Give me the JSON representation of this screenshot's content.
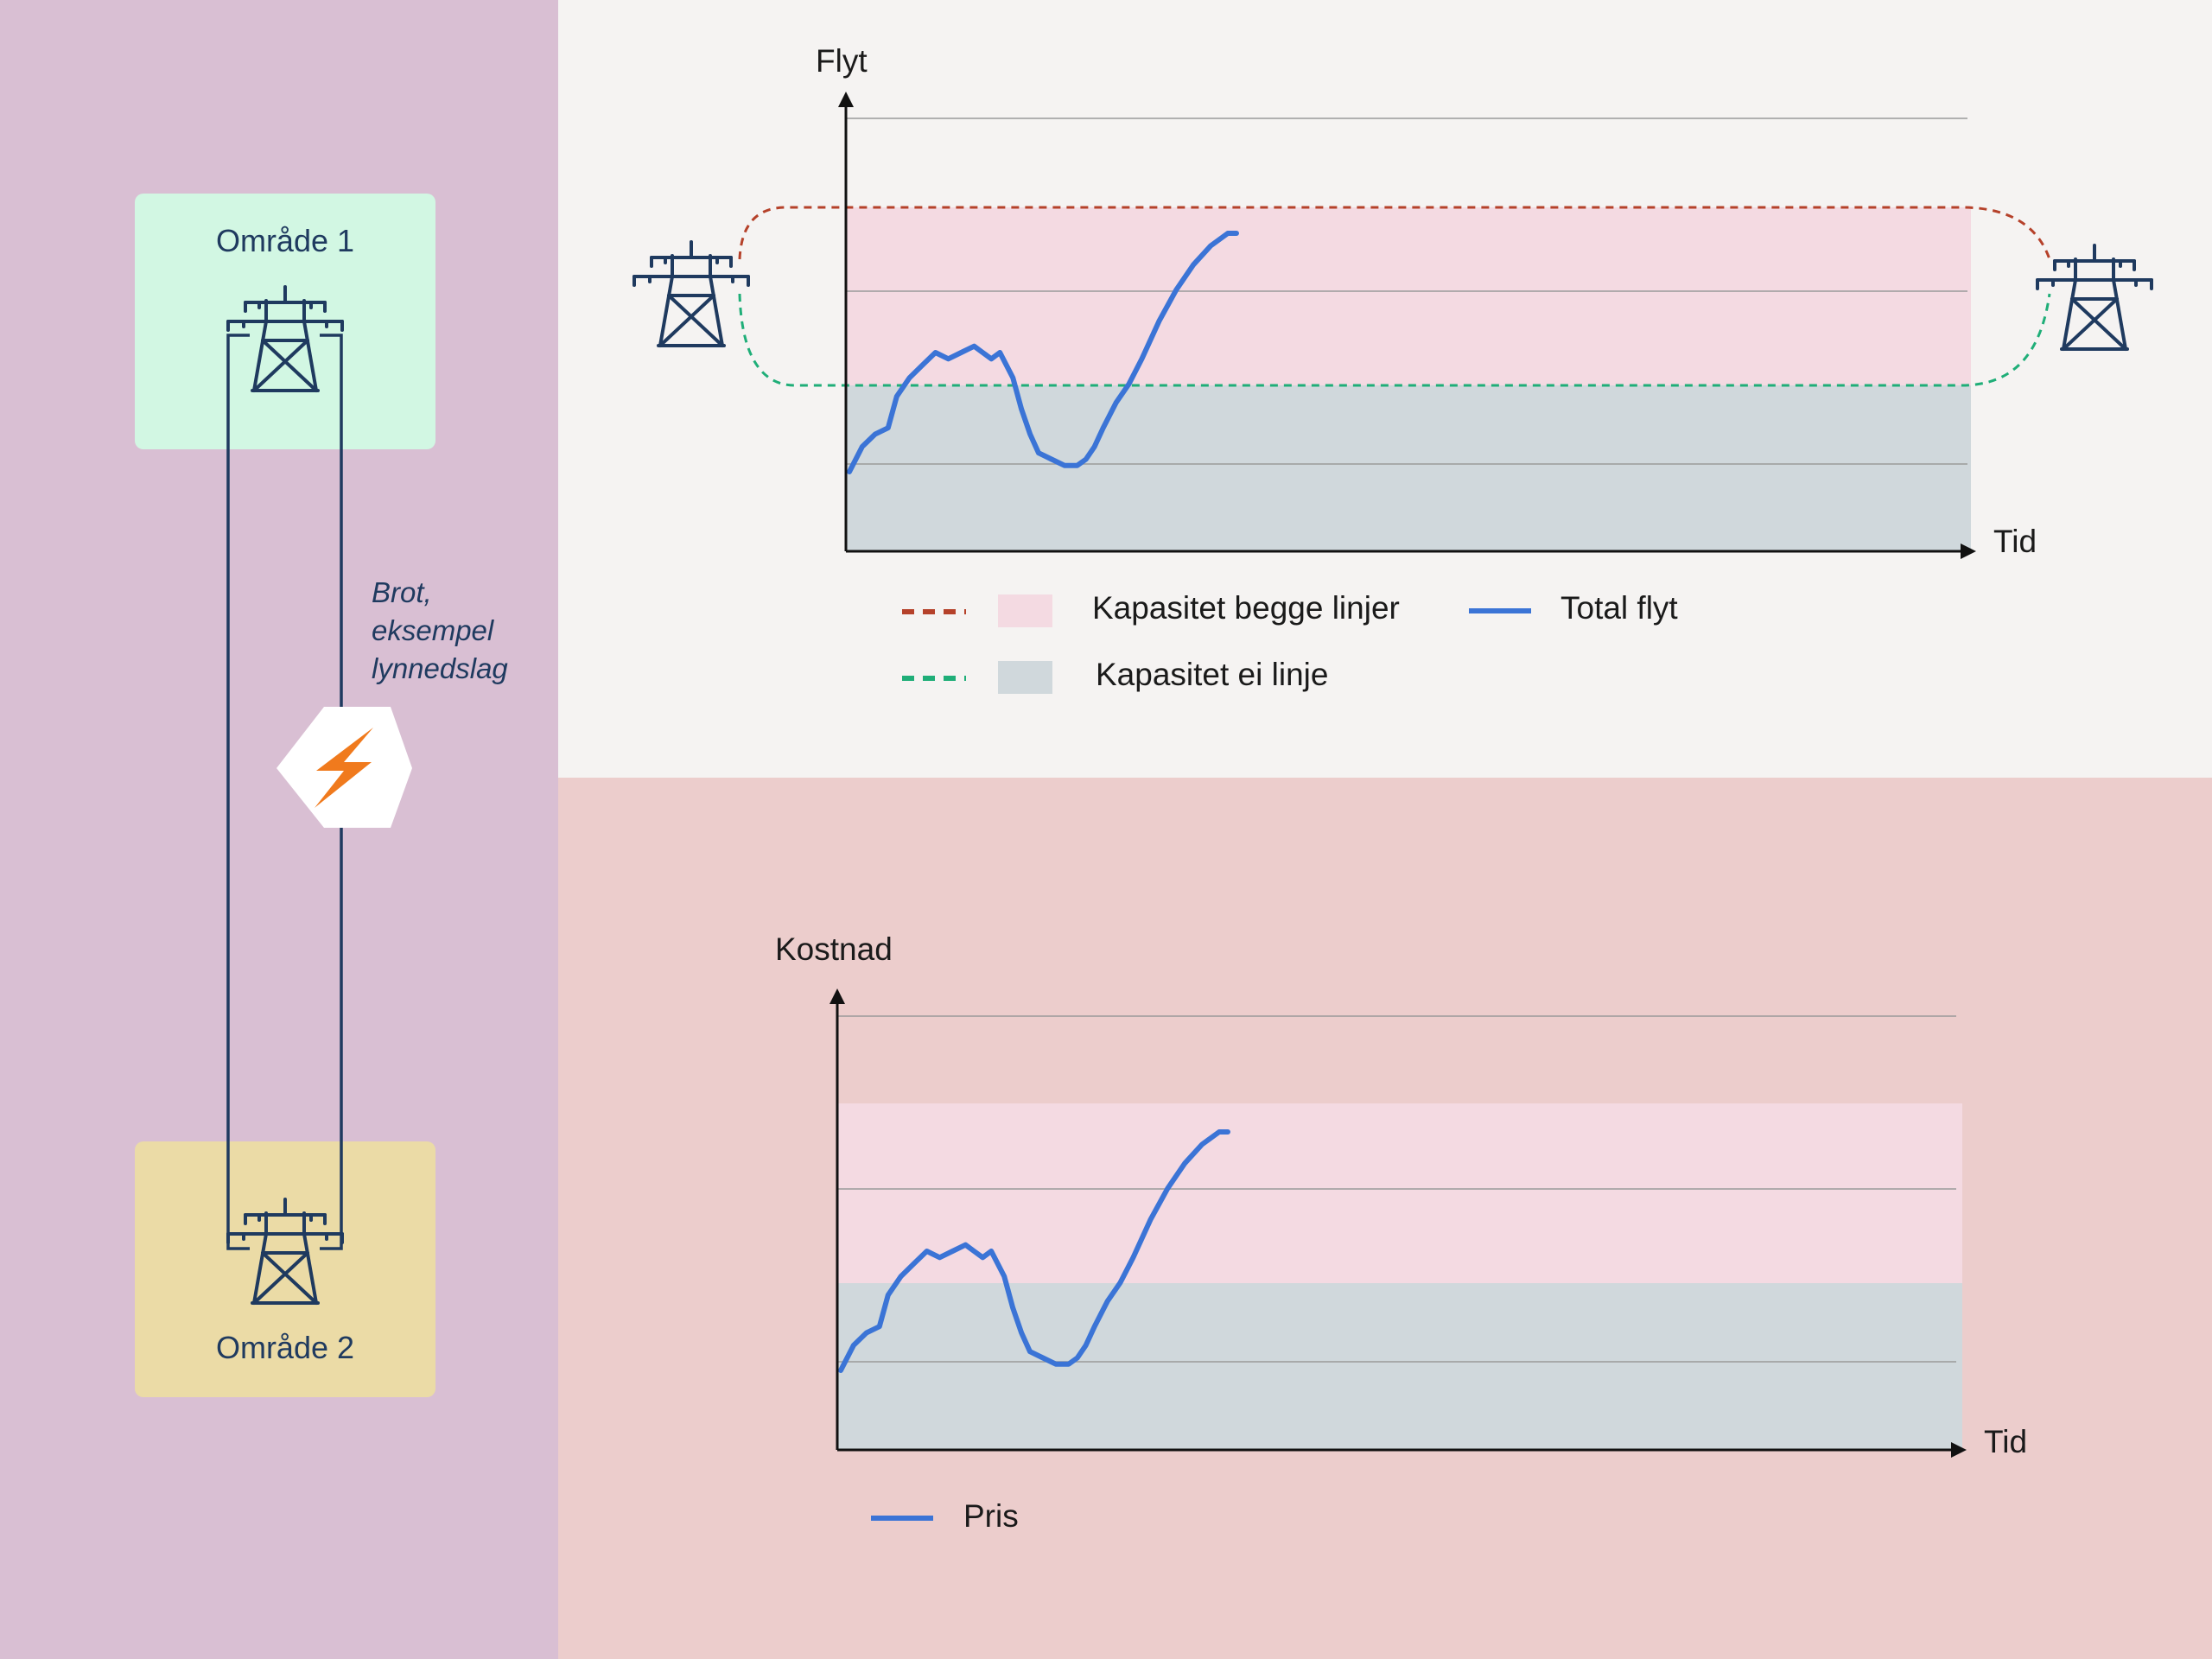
{
  "left": {
    "area1_label": "Område 1",
    "area2_label": "Område 2",
    "break_label": [
      "Brot,",
      "eksempel",
      "lynnedslag"
    ],
    "icons": [
      "transmission-tower-icon",
      "lightning-icon"
    ]
  },
  "colors": {
    "left_bg": "#d9bfd3",
    "top_bg": "#f5f3f2",
    "bottom_bg": "#eccdcc",
    "area1": "#d2f7e3",
    "area2": "#ebdba6",
    "line_blue": "#3b74d6",
    "cap_both_dash": "#b5412a",
    "cap_one_dash": "#1fae78",
    "band_both": "#f4dae2",
    "band_one": "#d0d8dc",
    "lightning": "#f07a1d",
    "tower": "#1f3a5f"
  },
  "chart_data": [
    {
      "type": "line",
      "ylabel": "Flyt",
      "xlabel": "Tid",
      "series": [
        {
          "name": "Total flyt"
        }
      ],
      "bands": [
        {
          "label": "Kapasitet begge linjer",
          "line_style": "dashed"
        },
        {
          "label": "Kapasitet ei linje",
          "line_style": "dashed"
        }
      ],
      "grid": true,
      "legend": "bottom"
    },
    {
      "type": "line",
      "ylabel": "Kostnad",
      "xlabel": "Tid",
      "series": [
        {
          "name": "Pris"
        }
      ],
      "grid": true,
      "legend": "bottom"
    }
  ]
}
